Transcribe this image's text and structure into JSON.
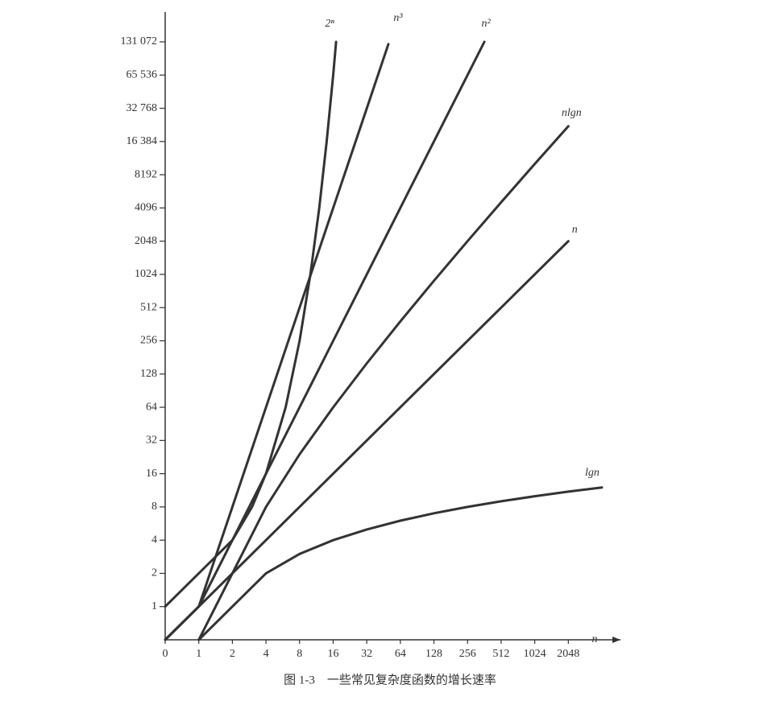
{
  "chart_data": {
    "type": "line",
    "caption": "图 1-3　一些常见复杂度函数的增长速率",
    "xlabel": "n",
    "xscale": "symlog2",
    "yscale": "symlog2",
    "xlim": [
      0,
      4096
    ],
    "ylim": [
      0,
      131072
    ],
    "xticks": [
      0,
      1,
      2,
      4,
      8,
      16,
      32,
      64,
      128,
      256,
      512,
      1024,
      2048
    ],
    "yticks": [
      1,
      2,
      4,
      8,
      16,
      32,
      64,
      128,
      256,
      512,
      1024,
      2048,
      4096,
      8192,
      {
        "value": 16384,
        "label": "16 384"
      },
      {
        "value": 32768,
        "label": "32 768"
      },
      {
        "value": 65536,
        "label": "65 536"
      },
      {
        "value": 131072,
        "label": "131 072"
      }
    ],
    "series": [
      {
        "name": "2ⁿ",
        "color": "#333333",
        "x": [
          0,
          1,
          2,
          3,
          4,
          6,
          8,
          10,
          12,
          14,
          16,
          17
        ],
        "values": [
          1,
          2,
          4,
          8,
          16,
          64,
          256,
          1024,
          4096,
          16384,
          65536,
          131072
        ]
      },
      {
        "name": "n³",
        "color": "#333333",
        "x": [
          0,
          1,
          2,
          4,
          8,
          16,
          32,
          50
        ],
        "values": [
          0,
          1,
          8,
          64,
          512,
          4096,
          32768,
          125000
        ]
      },
      {
        "name": "n²",
        "color": "#333333",
        "x": [
          0,
          1,
          2,
          4,
          8,
          16,
          32,
          64,
          128,
          256,
          362
        ],
        "values": [
          0,
          1,
          4,
          16,
          64,
          256,
          1024,
          4096,
          16384,
          65536,
          131044
        ]
      },
      {
        "name": "nlgn",
        "color": "#333333",
        "x": [
          1,
          2,
          4,
          8,
          16,
          32,
          64,
          128,
          256,
          512,
          1024,
          2048
        ],
        "values": [
          0,
          2,
          8,
          24,
          64,
          160,
          384,
          896,
          2048,
          4608,
          10240,
          22528
        ]
      },
      {
        "name": "n",
        "color": "#333333",
        "x": [
          0,
          1,
          2048
        ],
        "values": [
          0,
          1,
          2048
        ]
      },
      {
        "name": "lgn",
        "color": "#333333",
        "x": [
          1,
          2,
          4,
          8,
          16,
          32,
          64,
          128,
          256,
          512,
          1024,
          2048,
          4096
        ],
        "values": [
          0,
          1,
          2,
          3,
          4,
          5,
          6,
          7,
          8,
          9,
          10,
          11,
          12
        ]
      }
    ]
  }
}
